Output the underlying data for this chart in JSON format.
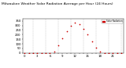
{
  "title": "Milwaukee Weather Solar Radiation Average per Hour (24 Hours)",
  "hours": [
    0,
    1,
    2,
    3,
    4,
    5,
    6,
    7,
    8,
    9,
    10,
    11,
    12,
    13,
    14,
    15,
    16,
    17,
    18,
    19,
    20,
    21,
    22,
    23
  ],
  "solar_radiation": [
    0,
    0,
    0,
    0,
    0,
    0,
    2,
    18,
    80,
    160,
    240,
    295,
    330,
    310,
    260,
    200,
    130,
    60,
    15,
    2,
    0,
    0,
    0,
    0
  ],
  "dot_color": "#cc0000",
  "dot_size": 1.5,
  "bg_color": "#ffffff",
  "grid_color": "#bbbbbb",
  "ylim": [
    0,
    370
  ],
  "xlim": [
    -0.5,
    23.5
  ],
  "legend_label": "Solar Radiation",
  "legend_color": "#cc0000",
  "title_fontsize": 3.2,
  "tick_fontsize": 2.8,
  "ylabel_fontsize": 3.0,
  "yticks": [
    0,
    50,
    100,
    150,
    200,
    250,
    300,
    350
  ],
  "grid_positions": [
    2,
    5,
    8,
    11,
    14,
    17,
    20,
    23
  ]
}
